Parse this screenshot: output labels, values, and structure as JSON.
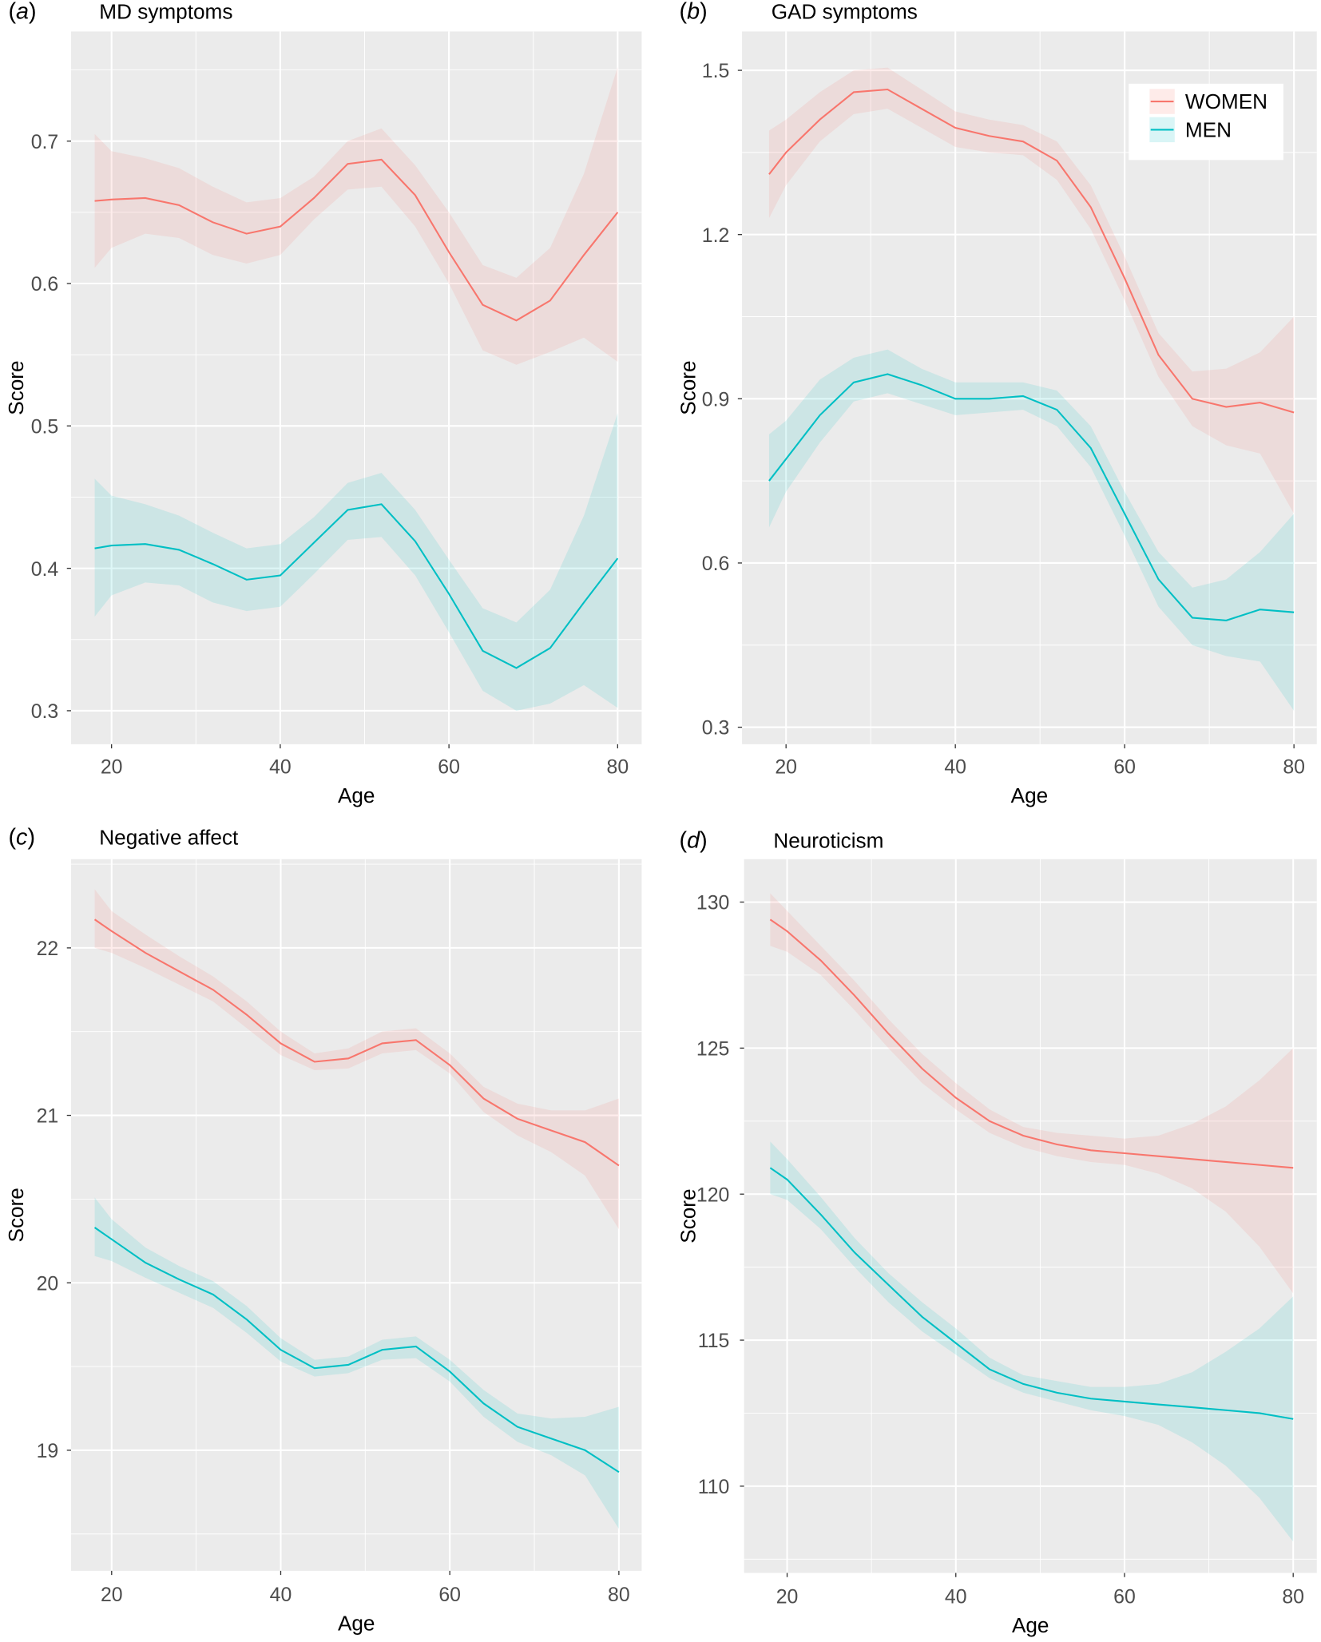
{
  "legend": {
    "items": [
      {
        "label": "WOMEN",
        "color": "#F8766D"
      },
      {
        "label": "MEN",
        "color": "#00BFC4"
      }
    ],
    "placement": "top-right of panel (b)"
  },
  "chart_data": [
    {
      "type": "line",
      "panel_label": "a",
      "title": "MD symptoms",
      "xlabel": "Age",
      "ylabel": "Score",
      "xlim": [
        15.2,
        82.85
      ],
      "ylim": [
        0.2765,
        0.777
      ],
      "xticks": [
        20,
        40,
        60,
        80
      ],
      "yticks": [
        0.3,
        0.4,
        0.5,
        0.6,
        0.7
      ],
      "ytick_labels": [
        "0.3",
        "0.4",
        "0.5",
        "0.6",
        "0.7"
      ],
      "grid": true,
      "x": [
        18,
        20,
        24,
        28,
        32,
        36,
        40,
        44,
        48,
        52,
        56,
        60,
        64,
        68,
        72,
        76,
        80
      ],
      "series": [
        {
          "name": "WOMEN",
          "color": "#F8766D",
          "values": [
            0.658,
            0.659,
            0.66,
            0.655,
            0.643,
            0.635,
            0.64,
            0.66,
            0.684,
            0.687,
            0.662,
            0.622,
            0.585,
            0.574,
            0.588,
            0.62,
            0.65
          ],
          "lower": [
            0.611,
            0.625,
            0.635,
            0.632,
            0.62,
            0.614,
            0.62,
            0.645,
            0.666,
            0.668,
            0.64,
            0.6,
            0.553,
            0.543,
            0.552,
            0.562,
            0.545
          ],
          "upper": [
            0.705,
            0.693,
            0.688,
            0.681,
            0.668,
            0.657,
            0.66,
            0.675,
            0.7,
            0.709,
            0.683,
            0.65,
            0.613,
            0.604,
            0.625,
            0.677,
            0.752
          ]
        },
        {
          "name": "MEN",
          "color": "#00BFC4",
          "values": [
            0.414,
            0.416,
            0.417,
            0.413,
            0.403,
            0.392,
            0.395,
            0.418,
            0.441,
            0.445,
            0.419,
            0.382,
            0.342,
            0.33,
            0.344,
            0.376,
            0.407
          ],
          "lower": [
            0.366,
            0.381,
            0.39,
            0.388,
            0.376,
            0.37,
            0.373,
            0.396,
            0.42,
            0.422,
            0.395,
            0.355,
            0.314,
            0.3,
            0.305,
            0.318,
            0.302
          ],
          "upper": [
            0.463,
            0.451,
            0.445,
            0.437,
            0.425,
            0.414,
            0.417,
            0.436,
            0.46,
            0.467,
            0.441,
            0.406,
            0.372,
            0.362,
            0.385,
            0.437,
            0.509
          ]
        }
      ]
    },
    {
      "type": "line",
      "panel_label": "b",
      "title": "GAD symptoms",
      "xlabel": "Age",
      "ylabel": "Score",
      "xlim": [
        14.8,
        82.7
      ],
      "ylim": [
        0.269,
        1.571
      ],
      "xticks": [
        20,
        40,
        60,
        80
      ],
      "yticks": [
        0.3,
        0.6,
        0.9,
        1.2,
        1.5
      ],
      "ytick_labels": [
        "0.3",
        "0.6",
        "0.9",
        "1.2",
        "1.5"
      ],
      "grid": true,
      "x": [
        18,
        20,
        24,
        28,
        32,
        36,
        40,
        44,
        48,
        52,
        56,
        60,
        64,
        68,
        72,
        76,
        80
      ],
      "series": [
        {
          "name": "WOMEN",
          "color": "#F8766D",
          "values": [
            1.31,
            1.35,
            1.41,
            1.46,
            1.465,
            1.43,
            1.395,
            1.38,
            1.37,
            1.335,
            1.25,
            1.12,
            0.98,
            0.9,
            0.885,
            0.893,
            0.875
          ],
          "lower": [
            1.23,
            1.29,
            1.37,
            1.42,
            1.43,
            1.395,
            1.36,
            1.35,
            1.345,
            1.3,
            1.21,
            1.08,
            0.94,
            0.85,
            0.815,
            0.8,
            0.69
          ],
          "upper": [
            1.39,
            1.41,
            1.46,
            1.5,
            1.505,
            1.465,
            1.425,
            1.41,
            1.4,
            1.37,
            1.29,
            1.16,
            1.02,
            0.95,
            0.955,
            0.985,
            1.05
          ]
        },
        {
          "name": "MEN",
          "color": "#00BFC4",
          "values": [
            0.75,
            0.79,
            0.87,
            0.93,
            0.945,
            0.925,
            0.9,
            0.9,
            0.905,
            0.88,
            0.81,
            0.69,
            0.57,
            0.5,
            0.495,
            0.515,
            0.51
          ],
          "lower": [
            0.665,
            0.73,
            0.82,
            0.895,
            0.91,
            0.89,
            0.87,
            0.875,
            0.88,
            0.85,
            0.775,
            0.65,
            0.52,
            0.45,
            0.43,
            0.42,
            0.33
          ],
          "upper": [
            0.835,
            0.86,
            0.935,
            0.975,
            0.99,
            0.955,
            0.93,
            0.93,
            0.93,
            0.915,
            0.85,
            0.73,
            0.62,
            0.555,
            0.57,
            0.62,
            0.69
          ]
        }
      ]
    },
    {
      "type": "line",
      "panel_label": "c",
      "title": "Negative affect",
      "xlabel": "Age",
      "ylabel": "Score",
      "xlim": [
        15.2,
        82.7
      ],
      "ylim": [
        18.28,
        22.53
      ],
      "xticks": [
        20,
        40,
        60,
        80
      ],
      "yticks": [
        19,
        20,
        21,
        22
      ],
      "ytick_labels": [
        "19",
        "20",
        "21",
        "22"
      ],
      "grid": true,
      "x": [
        18,
        20,
        24,
        28,
        32,
        36,
        40,
        44,
        48,
        52,
        56,
        60,
        64,
        68,
        72,
        76,
        80
      ],
      "series": [
        {
          "name": "WOMEN",
          "color": "#F8766D",
          "values": [
            22.17,
            22.1,
            21.97,
            21.86,
            21.75,
            21.6,
            21.43,
            21.32,
            21.34,
            21.43,
            21.45,
            21.3,
            21.1,
            20.98,
            20.91,
            20.84,
            20.7
          ],
          "lower": [
            22.0,
            21.97,
            21.88,
            21.78,
            21.68,
            21.52,
            21.36,
            21.27,
            21.28,
            21.37,
            21.39,
            21.25,
            21.02,
            20.88,
            20.78,
            20.64,
            20.32
          ],
          "upper": [
            22.35,
            22.22,
            22.08,
            21.95,
            21.83,
            21.68,
            21.5,
            21.37,
            21.4,
            21.5,
            21.52,
            21.37,
            21.17,
            21.07,
            21.03,
            21.03,
            21.1
          ]
        },
        {
          "name": "MEN",
          "color": "#00BFC4",
          "values": [
            20.33,
            20.26,
            20.12,
            20.02,
            19.93,
            19.78,
            19.6,
            19.49,
            19.51,
            19.6,
            19.62,
            19.47,
            19.28,
            19.14,
            19.07,
            19.0,
            18.87
          ],
          "lower": [
            20.16,
            20.13,
            20.03,
            19.94,
            19.85,
            19.7,
            19.53,
            19.44,
            19.46,
            19.54,
            19.55,
            19.41,
            19.2,
            19.05,
            18.97,
            18.85,
            18.53
          ],
          "upper": [
            20.51,
            20.38,
            20.21,
            20.1,
            20.01,
            19.86,
            19.67,
            19.54,
            19.56,
            19.66,
            19.68,
            19.54,
            19.36,
            19.22,
            19.19,
            19.2,
            19.26
          ]
        }
      ]
    },
    {
      "type": "line",
      "panel_label": "d",
      "title": "Neuroticism",
      "xlabel": "Age",
      "ylabel": "Score",
      "xlim": [
        14.9,
        82.8
      ],
      "ylim": [
        107.03,
        131.47
      ],
      "xticks": [
        20,
        40,
        60,
        80
      ],
      "yticks": [
        110,
        115,
        120,
        125,
        130
      ],
      "ytick_labels": [
        "110",
        "115",
        "120",
        "125",
        "130"
      ],
      "grid": true,
      "x": [
        18,
        20,
        24,
        28,
        32,
        36,
        40,
        44,
        48,
        52,
        56,
        60,
        64,
        68,
        72,
        76,
        80
      ],
      "series": [
        {
          "name": "WOMEN",
          "color": "#F8766D",
          "values": [
            129.4,
            129.0,
            128.0,
            126.8,
            125.5,
            124.3,
            123.3,
            122.5,
            122.0,
            121.7,
            121.5,
            121.4,
            121.3,
            121.2,
            121.1,
            121.0,
            120.9
          ],
          "lower": [
            128.5,
            128.3,
            127.5,
            126.3,
            125.0,
            123.8,
            122.9,
            122.1,
            121.6,
            121.3,
            121.1,
            121.0,
            120.7,
            120.2,
            119.4,
            118.2,
            116.6
          ],
          "upper": [
            130.3,
            129.7,
            128.5,
            127.3,
            126.0,
            124.8,
            123.8,
            122.9,
            122.3,
            122.1,
            122.0,
            121.9,
            122.0,
            122.4,
            123.0,
            123.9,
            125.0
          ]
        },
        {
          "name": "MEN",
          "color": "#00BFC4",
          "values": [
            120.9,
            120.5,
            119.3,
            118.0,
            116.9,
            115.8,
            114.9,
            114.0,
            113.5,
            113.2,
            113.0,
            112.9,
            112.8,
            112.7,
            112.6,
            112.5,
            112.3
          ],
          "lower": [
            120.0,
            119.8,
            118.8,
            117.5,
            116.3,
            115.3,
            114.5,
            113.7,
            113.2,
            112.9,
            112.6,
            112.4,
            112.1,
            111.5,
            110.7,
            109.6,
            108.1
          ],
          "upper": [
            121.8,
            121.2,
            119.9,
            118.5,
            117.3,
            116.3,
            115.4,
            114.4,
            113.8,
            113.6,
            113.4,
            113.4,
            113.5,
            113.9,
            114.6,
            115.4,
            116.5
          ]
        }
      ]
    }
  ]
}
